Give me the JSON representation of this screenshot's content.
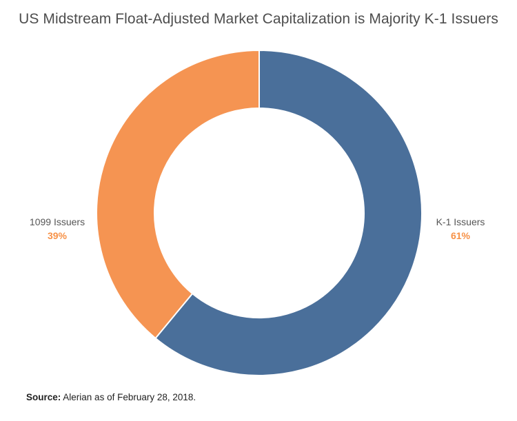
{
  "chart_data": {
    "type": "pie",
    "title": "US Midstream Float-Adjusted Market Capitalization is Majority K-1 Issuers",
    "slices": [
      {
        "label": "K-1 Issuers",
        "value": 61,
        "value_label": "61%",
        "color": "#4a6f9a",
        "label_color": "#f79146"
      },
      {
        "label": "1099 Issuers",
        "value": 39,
        "value_label": "39%",
        "color": "#f59452",
        "label_color": "#f79146"
      }
    ],
    "donut": true,
    "start": "top",
    "direction": "clockwise"
  },
  "source": {
    "label": "Source:",
    "text": "Alerian as of February 28, 2018."
  }
}
